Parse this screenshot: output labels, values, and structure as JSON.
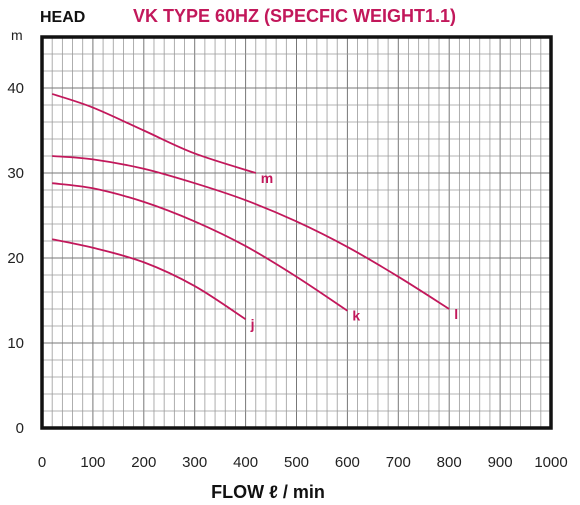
{
  "chart_data": {
    "type": "line",
    "title": "VK TYPE 60HZ (SPECFIC WEIGHT1.1)",
    "ylabel": "HEAD",
    "yunit": "m",
    "xlabel": "FLOW ℓ / min",
    "xlim": [
      0,
      1000
    ],
    "ylim": [
      0,
      46
    ],
    "xticks": [
      0,
      100,
      200,
      300,
      400,
      500,
      600,
      700,
      800,
      900,
      1000
    ],
    "yticks": [
      0,
      10,
      20,
      30,
      40
    ],
    "grid": true,
    "series_color": "#c2185b",
    "series": [
      {
        "name": "m",
        "x": [
          20,
          100,
          200,
          300,
          420
        ],
        "y": [
          39.3,
          37.7,
          35.0,
          32.3,
          30.0
        ]
      },
      {
        "name": "l",
        "x": [
          20,
          100,
          200,
          300,
          400,
          500,
          600,
          700,
          800
        ],
        "y": [
          32.0,
          31.6,
          30.5,
          28.8,
          26.8,
          24.3,
          21.3,
          17.8,
          14.0
        ]
      },
      {
        "name": "k",
        "x": [
          20,
          100,
          200,
          300,
          400,
          500,
          600
        ],
        "y": [
          28.8,
          28.2,
          26.6,
          24.3,
          21.4,
          17.8,
          13.8
        ]
      },
      {
        "name": "j",
        "x": [
          20,
          100,
          200,
          300,
          400
        ],
        "y": [
          22.2,
          21.2,
          19.5,
          16.7,
          12.8
        ]
      }
    ]
  }
}
